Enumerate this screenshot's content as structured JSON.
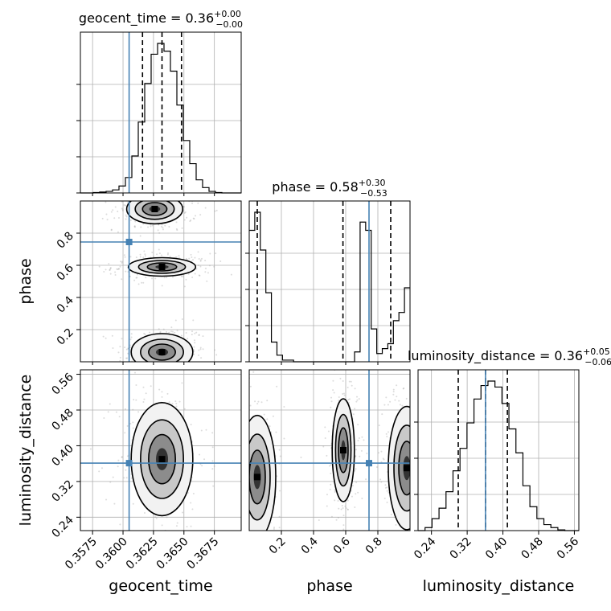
{
  "chart_data": {
    "type": "corner",
    "parameters": [
      "geocent_time",
      "phase",
      "luminosity_distance"
    ],
    "axis_labels": {
      "geocent_time": "geocent_time",
      "phase": "phase",
      "luminosity_distance": "luminosity_distance"
    },
    "truths": {
      "geocent_time": 0.3605,
      "phase": 0.745,
      "luminosity_distance": 0.361
    },
    "titles": [
      {
        "param": "geocent_time",
        "name": "geocent_time",
        "value": "0.36",
        "plus": "+0.00",
        "minus": "−0.00"
      },
      {
        "param": "phase",
        "name": "phase",
        "value": "0.58",
        "plus": "+0.30",
        "minus": "−0.53"
      },
      {
        "param": "luminosity_distance",
        "name": "luminosity_distance",
        "value": "0.36",
        "plus": "+0.05",
        "minus": "−0.06"
      }
    ],
    "ranges": {
      "geocent_time": [
        0.3565,
        0.3697
      ],
      "phase": [
        0.0,
        1.0
      ],
      "luminosity_distance": [
        0.21,
        0.57
      ]
    },
    "ticks": {
      "geocent_time": {
        "values": [
          0.3575,
          0.36,
          0.3625,
          0.365,
          0.3675
        ],
        "labels": [
          "0.3575",
          "0.3600",
          "0.3625",
          "0.3650",
          "0.3675"
        ]
      },
      "phase": {
        "values": [
          0.2,
          0.4,
          0.6,
          0.8
        ],
        "labels": [
          "0.2",
          "0.4",
          "0.6",
          "0.8"
        ]
      },
      "luminosity_distance": {
        "values": [
          0.24,
          0.32,
          0.4,
          0.48,
          0.56
        ],
        "labels": [
          "0.24",
          "0.32",
          "0.40",
          "0.48",
          "0.56"
        ]
      }
    },
    "quantiles": {
      "geocent_time": [
        0.3616,
        0.3632,
        0.3648
      ],
      "phase": [
        0.05,
        0.583,
        0.88
      ],
      "luminosity_distance": [
        0.3,
        0.361,
        0.41
      ]
    },
    "histograms": {
      "geocent_time": {
        "edges_range": [
          0.3565,
          0.3697
        ],
        "counts": [
          0,
          0,
          0.3,
          0.6,
          1,
          2,
          4.5,
          10,
          24,
          46,
          71,
          90,
          97,
          92,
          79,
          57,
          34,
          19,
          8.5,
          3.5,
          1,
          0.3,
          0,
          0,
          0
        ]
      },
      "phase": {
        "edges_range": [
          0.0,
          1.0
        ],
        "counts": [
          80,
          91,
          68,
          42,
          12,
          4,
          1,
          1,
          0,
          0,
          0,
          0,
          0,
          0,
          0,
          0,
          0,
          0,
          0,
          6,
          85,
          80,
          20,
          5,
          8,
          11,
          25,
          30,
          45
        ]
      },
      "luminosity_distance": {
        "edges_range": [
          0.21,
          0.57
        ],
        "counts": [
          0,
          2,
          8,
          15,
          26,
          40,
          55,
          72,
          88,
          97,
          100,
          96,
          85,
          68,
          52,
          30,
          16,
          8,
          4,
          2,
          0.5,
          0,
          0
        ]
      }
    },
    "density_blobs": [
      {
        "panel": "phase_vs_geocent_time",
        "x": 0.3632,
        "y": 0.06,
        "sx": 0.0011,
        "sy": 0.05
      },
      {
        "panel": "phase_vs_geocent_time",
        "x": 0.3632,
        "y": 0.59,
        "sx": 0.0012,
        "sy": 0.025
      },
      {
        "panel": "phase_vs_geocent_time",
        "x": 0.3626,
        "y": 0.95,
        "sx": 0.001,
        "sy": 0.04
      },
      {
        "panel": "luminosity_distance_vs_geocent_time",
        "x": 0.3632,
        "y": 0.37,
        "sx": 0.0011,
        "sy": 0.055
      },
      {
        "panel": "luminosity_distance_vs_phase",
        "x": 0.05,
        "y": 0.33,
        "sx": 0.05,
        "sy": 0.06
      },
      {
        "panel": "luminosity_distance_vs_phase",
        "x": 0.585,
        "y": 0.39,
        "sx": 0.03,
        "sy": 0.05
      },
      {
        "panel": "luminosity_distance_vs_phase",
        "x": 0.98,
        "y": 0.35,
        "sx": 0.05,
        "sy": 0.06
      }
    ],
    "grid": true
  }
}
